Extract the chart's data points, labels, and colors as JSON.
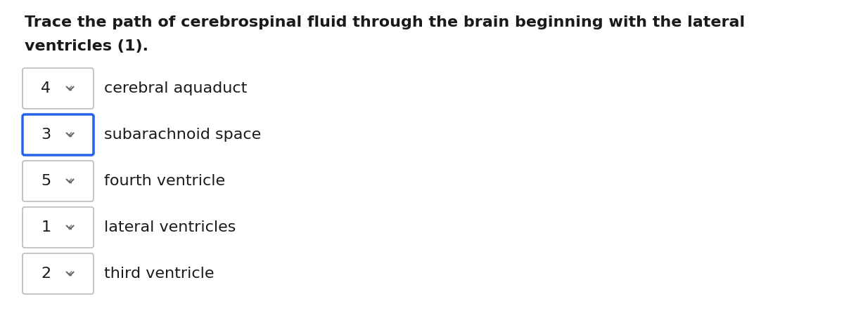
{
  "title_line1": "Trace the path of cerebrospinal fluid through the brain beginning with the lateral",
  "title_line2": "ventricles (1).",
  "background_color": "#ffffff",
  "items": [
    {
      "number": "4",
      "label": "cerebral aquaduct",
      "border_color": "#bbbbbb",
      "border_width": 1.2
    },
    {
      "number": "3",
      "label": "subarachnoid space",
      "border_color": "#2563eb",
      "border_width": 2.5
    },
    {
      "number": "5",
      "label": "fourth ventricle",
      "border_color": "#bbbbbb",
      "border_width": 1.2
    },
    {
      "number": "1",
      "label": "lateral ventricles",
      "border_color": "#bbbbbb",
      "border_width": 1.2
    },
    {
      "number": "2",
      "label": "third ventricle",
      "border_color": "#bbbbbb",
      "border_width": 1.2
    }
  ],
  "title_fontsize": 16,
  "label_fontsize": 16,
  "number_fontsize": 16,
  "chevron_color": "#666666",
  "text_color": "#1a1a1a"
}
